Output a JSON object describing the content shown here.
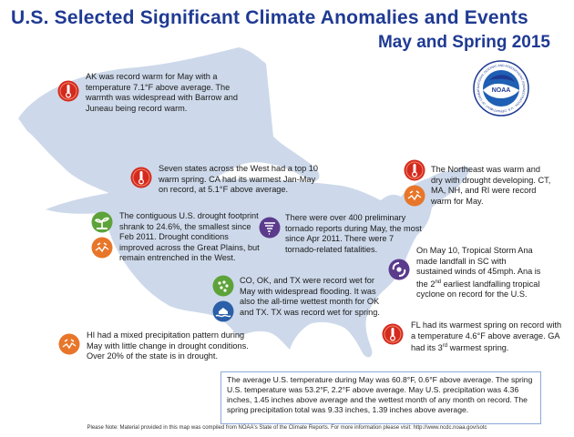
{
  "title_line1": "U.S. Selected Significant Climate Anomalies and Events",
  "title_line2": "May and Spring 2015",
  "logo": {
    "name": "NOAA",
    "ring_text": "NATIONAL OCEANIC AND ATMOSPHERIC ADMINISTRATION · U.S. DEPARTMENT OF COMMERCE"
  },
  "events": {
    "alaska": {
      "text": "AK was record warm for May with a temperature 7.1°F above average. The warmth was widespread with Barrow and Juneau being record warm.",
      "icon": "thermometer-hot-icon"
    },
    "west": {
      "text": "Seven states across the West had a top 10 warm spring. CA had its warmest Jan-May on record, at 5.1°F above average.",
      "icon": "thermometer-hot-icon"
    },
    "drought": {
      "text": "The contiguous U.S. drought footprint shrank to 24.6%, the smallest since Feb 2011. Drought conditions improved across the Great Plains, but remain entrenched in the West.",
      "icons": [
        "drought-improvement-icon",
        "drought-icon"
      ]
    },
    "tornado": {
      "text": "There were over 400 preliminary tornado reports during May, the most since Apr 2011. There were 7 tornado-related fatalities.",
      "icon": "tornado-icon"
    },
    "northeast": {
      "text": "The Northeast was warm and dry with drought developing. CT, MA, NH, and RI were record warm for May.",
      "icons": [
        "thermometer-hot-icon",
        "drought-icon"
      ]
    },
    "ana_pre": "On May 10, Tropical Storm Ana made landfall in SC with sustained winds of 45mph. Ana is the 2",
    "ana_sup": "nd",
    "ana_post": " earliest landfalling tropical cyclone on record for the U.S.",
    "ana_icon": "tropical-storm-icon",
    "wet": {
      "text": "CO, OK, and TX were record wet for May with widespread flooding. It was also the all-time wettest month for OK and TX. TX was record wet for spring.",
      "icons": [
        "heavy-rain-icon",
        "flood-icon"
      ]
    },
    "florida_pre": "FL had its warmest spring on record with a temperature 4.6°F above average. GA had its 3",
    "florida_sup": "rd",
    "florida_post": " warmest spring.",
    "florida_icon": "thermometer-hot-icon",
    "hawaii": {
      "text": "HI had a mixed precipitation pattern during May with little change in drought conditions. Over 20% of the state is in drought.",
      "icon": "drought-icon"
    }
  },
  "summary": "The average U.S. temperature during May was 60.8°F, 0.6°F above average. The spring U.S. temperature was 53.2°F, 2.2°F above average. May U.S. precipitation was 4.36 inches, 1.45 inches above average and the wettest month of any month on record. The spring precipitation total was 9.33 inches, 1.39 inches above average.",
  "footer": "Please Note: Material provided in this map was compiled from NOAA's State of the Climate Reports. For more information please visit: http://www.ncdc.noaa.gov/sotc",
  "colors": {
    "title": "#1f3a93",
    "map_fill": "#cdd9ea",
    "hot": "#d42a1e",
    "drought": "#e8762a",
    "green": "#5da33a",
    "purple": "#5b3b8c",
    "summary_border": "#8aa8d8"
  }
}
